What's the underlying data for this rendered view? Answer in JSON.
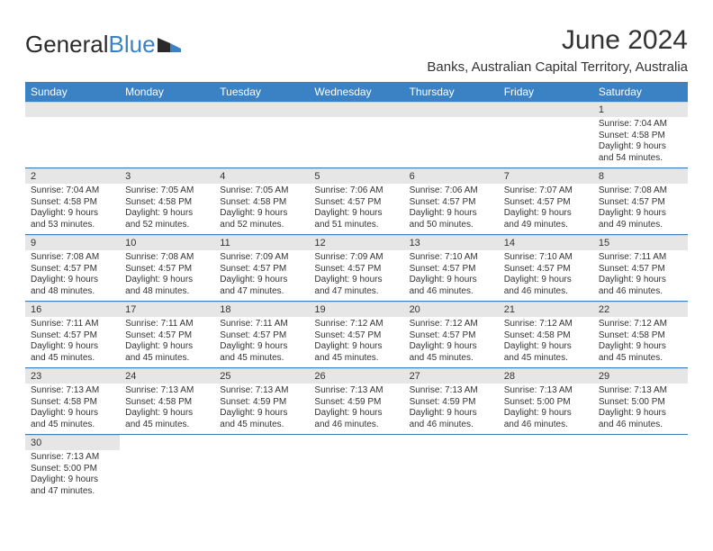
{
  "logo": {
    "text1": "General",
    "text2": "Blue"
  },
  "title": "June 2024",
  "subtitle": "Banks, Australian Capital Territory, Australia",
  "colors": {
    "header_bg": "#3b82c4",
    "header_text": "#ffffff",
    "daynum_bg": "#e6e6e6",
    "row_border": "#3b82c4",
    "text": "#333333",
    "page_bg": "#ffffff"
  },
  "typography": {
    "title_fontsize": 30,
    "subtitle_fontsize": 15,
    "th_fontsize": 12,
    "daynum_fontsize": 11,
    "details_fontsize": 10
  },
  "layout": {
    "columns": 7,
    "rows": 6,
    "first_day_column": 6
  },
  "day_headers": [
    "Sunday",
    "Monday",
    "Tuesday",
    "Wednesday",
    "Thursday",
    "Friday",
    "Saturday"
  ],
  "days": [
    {
      "n": "1",
      "sunrise": "7:04 AM",
      "sunset": "4:58 PM",
      "daylight": "9 hours and 54 minutes."
    },
    {
      "n": "2",
      "sunrise": "7:04 AM",
      "sunset": "4:58 PM",
      "daylight": "9 hours and 53 minutes."
    },
    {
      "n": "3",
      "sunrise": "7:05 AM",
      "sunset": "4:58 PM",
      "daylight": "9 hours and 52 minutes."
    },
    {
      "n": "4",
      "sunrise": "7:05 AM",
      "sunset": "4:58 PM",
      "daylight": "9 hours and 52 minutes."
    },
    {
      "n": "5",
      "sunrise": "7:06 AM",
      "sunset": "4:57 PM",
      "daylight": "9 hours and 51 minutes."
    },
    {
      "n": "6",
      "sunrise": "7:06 AM",
      "sunset": "4:57 PM",
      "daylight": "9 hours and 50 minutes."
    },
    {
      "n": "7",
      "sunrise": "7:07 AM",
      "sunset": "4:57 PM",
      "daylight": "9 hours and 49 minutes."
    },
    {
      "n": "8",
      "sunrise": "7:08 AM",
      "sunset": "4:57 PM",
      "daylight": "9 hours and 49 minutes."
    },
    {
      "n": "9",
      "sunrise": "7:08 AM",
      "sunset": "4:57 PM",
      "daylight": "9 hours and 48 minutes."
    },
    {
      "n": "10",
      "sunrise": "7:08 AM",
      "sunset": "4:57 PM",
      "daylight": "9 hours and 48 minutes."
    },
    {
      "n": "11",
      "sunrise": "7:09 AM",
      "sunset": "4:57 PM",
      "daylight": "9 hours and 47 minutes."
    },
    {
      "n": "12",
      "sunrise": "7:09 AM",
      "sunset": "4:57 PM",
      "daylight": "9 hours and 47 minutes."
    },
    {
      "n": "13",
      "sunrise": "7:10 AM",
      "sunset": "4:57 PM",
      "daylight": "9 hours and 46 minutes."
    },
    {
      "n": "14",
      "sunrise": "7:10 AM",
      "sunset": "4:57 PM",
      "daylight": "9 hours and 46 minutes."
    },
    {
      "n": "15",
      "sunrise": "7:11 AM",
      "sunset": "4:57 PM",
      "daylight": "9 hours and 46 minutes."
    },
    {
      "n": "16",
      "sunrise": "7:11 AM",
      "sunset": "4:57 PM",
      "daylight": "9 hours and 45 minutes."
    },
    {
      "n": "17",
      "sunrise": "7:11 AM",
      "sunset": "4:57 PM",
      "daylight": "9 hours and 45 minutes."
    },
    {
      "n": "18",
      "sunrise": "7:11 AM",
      "sunset": "4:57 PM",
      "daylight": "9 hours and 45 minutes."
    },
    {
      "n": "19",
      "sunrise": "7:12 AM",
      "sunset": "4:57 PM",
      "daylight": "9 hours and 45 minutes."
    },
    {
      "n": "20",
      "sunrise": "7:12 AM",
      "sunset": "4:57 PM",
      "daylight": "9 hours and 45 minutes."
    },
    {
      "n": "21",
      "sunrise": "7:12 AM",
      "sunset": "4:58 PM",
      "daylight": "9 hours and 45 minutes."
    },
    {
      "n": "22",
      "sunrise": "7:12 AM",
      "sunset": "4:58 PM",
      "daylight": "9 hours and 45 minutes."
    },
    {
      "n": "23",
      "sunrise": "7:13 AM",
      "sunset": "4:58 PM",
      "daylight": "9 hours and 45 minutes."
    },
    {
      "n": "24",
      "sunrise": "7:13 AM",
      "sunset": "4:58 PM",
      "daylight": "9 hours and 45 minutes."
    },
    {
      "n": "25",
      "sunrise": "7:13 AM",
      "sunset": "4:59 PM",
      "daylight": "9 hours and 45 minutes."
    },
    {
      "n": "26",
      "sunrise": "7:13 AM",
      "sunset": "4:59 PM",
      "daylight": "9 hours and 46 minutes."
    },
    {
      "n": "27",
      "sunrise": "7:13 AM",
      "sunset": "4:59 PM",
      "daylight": "9 hours and 46 minutes."
    },
    {
      "n": "28",
      "sunrise": "7:13 AM",
      "sunset": "5:00 PM",
      "daylight": "9 hours and 46 minutes."
    },
    {
      "n": "29",
      "sunrise": "7:13 AM",
      "sunset": "5:00 PM",
      "daylight": "9 hours and 46 minutes."
    },
    {
      "n": "30",
      "sunrise": "7:13 AM",
      "sunset": "5:00 PM",
      "daylight": "9 hours and 47 minutes."
    }
  ],
  "labels": {
    "sunrise": "Sunrise:",
    "sunset": "Sunset:",
    "daylight": "Daylight:"
  }
}
